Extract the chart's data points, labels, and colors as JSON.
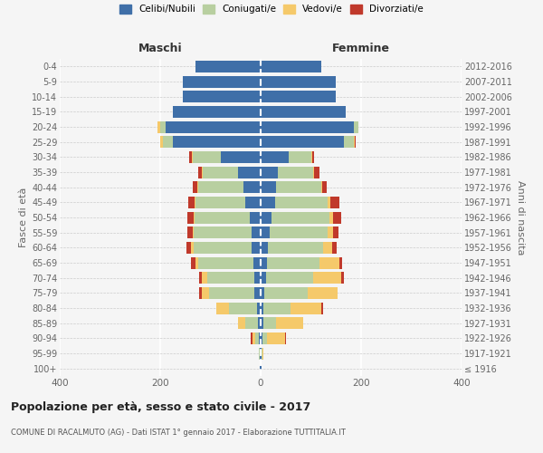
{
  "age_groups": [
    "100+",
    "95-99",
    "90-94",
    "85-89",
    "80-84",
    "75-79",
    "70-74",
    "65-69",
    "60-64",
    "55-59",
    "50-54",
    "45-49",
    "40-44",
    "35-39",
    "30-34",
    "25-29",
    "20-24",
    "15-19",
    "10-14",
    "5-9",
    "0-4"
  ],
  "birth_years": [
    "≤ 1916",
    "1917-1921",
    "1922-1926",
    "1927-1931",
    "1932-1936",
    "1937-1941",
    "1942-1946",
    "1947-1951",
    "1952-1956",
    "1957-1961",
    "1962-1966",
    "1967-1971",
    "1972-1976",
    "1977-1981",
    "1982-1986",
    "1987-1991",
    "1992-1996",
    "1997-2001",
    "2002-2006",
    "2007-2011",
    "2012-2016"
  ],
  "males": {
    "celibi": [
      1,
      1,
      3,
      5,
      8,
      12,
      12,
      15,
      18,
      18,
      22,
      30,
      35,
      45,
      80,
      175,
      190,
      175,
      155,
      155,
      130
    ],
    "coniugati": [
      0,
      2,
      8,
      25,
      55,
      90,
      95,
      110,
      115,
      115,
      110,
      100,
      90,
      70,
      55,
      20,
      10,
      0,
      0,
      0,
      0
    ],
    "vedovi": [
      0,
      0,
      5,
      15,
      25,
      15,
      10,
      5,
      5,
      3,
      2,
      2,
      2,
      2,
      2,
      5,
      5,
      0,
      0,
      0,
      0
    ],
    "divorziati": [
      0,
      0,
      3,
      0,
      0,
      5,
      5,
      8,
      10,
      10,
      12,
      12,
      8,
      8,
      5,
      0,
      0,
      0,
      0,
      0,
      0
    ]
  },
  "females": {
    "nubili": [
      1,
      1,
      3,
      5,
      5,
      8,
      10,
      12,
      15,
      18,
      22,
      28,
      30,
      35,
      55,
      165,
      185,
      170,
      150,
      150,
      120
    ],
    "coniugate": [
      0,
      2,
      10,
      25,
      55,
      85,
      95,
      105,
      110,
      115,
      115,
      105,
      90,
      70,
      45,
      20,
      10,
      0,
      0,
      0,
      0
    ],
    "vedove": [
      0,
      3,
      35,
      55,
      60,
      60,
      55,
      40,
      18,
      12,
      8,
      5,
      2,
      2,
      2,
      2,
      0,
      0,
      0,
      0,
      0
    ],
    "divorziate": [
      0,
      0,
      3,
      0,
      5,
      0,
      5,
      5,
      8,
      10,
      15,
      18,
      10,
      10,
      5,
      2,
      0,
      0,
      0,
      0,
      0
    ]
  },
  "colors": {
    "celibi": "#3f6fa8",
    "coniugati": "#b8cfa0",
    "vedovi": "#f5c96a",
    "divorziati": "#c0392b"
  },
  "xlim": 400,
  "title": "Popolazione per età, sesso e stato civile - 2017",
  "subtitle": "COMUNE DI RACALMUTO (AG) - Dati ISTAT 1° gennaio 2017 - Elaborazione TUTTITALIA.IT",
  "xlabel_left": "Maschi",
  "xlabel_right": "Femmine",
  "ylabel_left": "Fasce di età",
  "ylabel_right": "Anni di nascita",
  "legend_labels": [
    "Celibi/Nubili",
    "Coniugati/e",
    "Vedovi/e",
    "Divorziati/e"
  ],
  "background_color": "#f5f5f5"
}
